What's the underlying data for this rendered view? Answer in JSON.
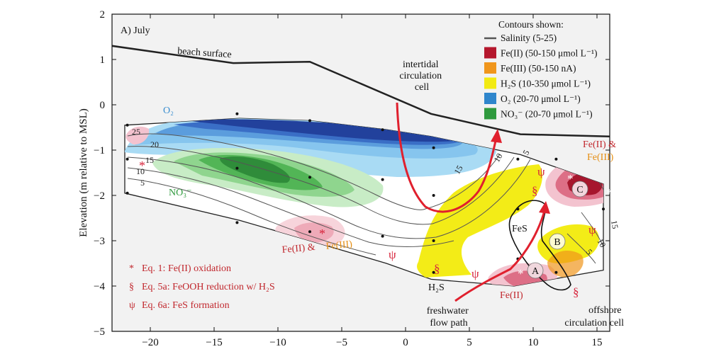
{
  "chart_data": {
    "type": "contour",
    "panel_label": "A) July",
    "ylabel": "Elevation (m relative to MSL)",
    "xlabel": "",
    "xlim": [
      -23,
      16
    ],
    "ylim": [
      -5,
      2
    ],
    "xticks": [
      -20,
      -15,
      -10,
      -5,
      0,
      5,
      10,
      15
    ],
    "xtick_labels": [
      "−20",
      "−15",
      "−10",
      "−5",
      "0",
      "5",
      "10",
      "15"
    ],
    "yticks": [
      -5,
      -4,
      -3,
      -2,
      -1,
      0,
      1,
      2
    ],
    "ytick_labels": [
      "−5",
      "−4",
      "−3",
      "−2",
      "−1",
      "0",
      "1",
      "2"
    ],
    "legend": {
      "title": "Contours shown:",
      "position": "top-right",
      "items": [
        {
          "label": "Salinity (5-25)",
          "kind": "line",
          "color": "#555555"
        },
        {
          "label": "Fe(II) (50-150 μmol L⁻¹)",
          "kind": "patch",
          "color": "#b5172d"
        },
        {
          "label": "Fe(III) (50-150 nA)",
          "kind": "patch",
          "color": "#f0961c"
        },
        {
          "label": "H₂S (10-350 μmol L⁻¹)",
          "kind": "patch",
          "color": "#f2ea12"
        },
        {
          "label": "O₂ (20-70 μmol L⁻¹)",
          "kind": "patch",
          "color": "#2f86cc"
        },
        {
          "label": "NO₃⁻ (20-70 μmol L⁻¹)",
          "kind": "patch",
          "color": "#2f9a3e"
        }
      ]
    },
    "beach_surface": {
      "x": [
        -23,
        -13.5,
        -7.5,
        2,
        9,
        16
      ],
      "y": [
        1.3,
        0.92,
        0.95,
        -0.2,
        -0.65,
        -0.7
      ]
    },
    "domain_top": {
      "x": [
        -22,
        -13,
        -7.5,
        -1.5,
        2,
        9,
        15.5
      ],
      "y": [
        -0.45,
        -0.3,
        -0.35,
        -0.55,
        -0.7,
        -1.1,
        -1.75
      ]
    },
    "domain_bottom": {
      "x": [
        -22,
        -13,
        -7.5,
        -1.5,
        2,
        8.5,
        15.5
      ],
      "y": [
        -1.95,
        -2.55,
        -3.0,
        -3.5,
        -3.85,
        -4.0,
        -3.65
      ]
    },
    "sample_points": [
      [
        -21.8,
        -0.45
      ],
      [
        -21.8,
        -1.2
      ],
      [
        -21.8,
        -1.95
      ],
      [
        -13.2,
        -0.2
      ],
      [
        -13.2,
        -1.4
      ],
      [
        -13.2,
        -2.6
      ],
      [
        -7.5,
        -0.35
      ],
      [
        -7.5,
        -1.6
      ],
      [
        -7.5,
        -2.8
      ],
      [
        -1.8,
        -0.55
      ],
      [
        -1.8,
        -1.65
      ],
      [
        -1.8,
        -2.9
      ],
      [
        2.2,
        -0.95
      ],
      [
        2.2,
        -2.0
      ],
      [
        2.2,
        -3.0
      ],
      [
        2.2,
        -3.7
      ],
      [
        8.8,
        -1.2
      ],
      [
        8.8,
        -2.3
      ],
      [
        8.8,
        -3.4
      ],
      [
        11.8,
        -1.2
      ],
      [
        11.8,
        -3.7
      ],
      [
        15.5,
        -2.3
      ]
    ],
    "salinity_contour_labels": [
      "25",
      "20",
      "15",
      "10",
      "5",
      "15",
      "10",
      "5",
      "15",
      "10",
      "5"
    ],
    "species_labels": {
      "o2": "O₂",
      "no3": "NO₃⁻",
      "fes": "FeS",
      "h2s": "H₂S",
      "fe2_left": "Fe(II) &",
      "fe3_left": "Fe(III)",
      "fe2_right": "Fe(II) &",
      "fe3_right": "Fe(III)",
      "fe2_bottom": "Fe(II)"
    },
    "zone_markers": [
      "A",
      "B",
      "C"
    ],
    "annotations": {
      "beach_surface": "beach surface",
      "intertidal": [
        "intertidal",
        "circulation",
        "cell"
      ],
      "freshwater": [
        "freshwater",
        "flow path"
      ],
      "offshore": [
        "offshore",
        "circulation cell"
      ]
    },
    "reaction_key": [
      {
        "symbol": "*",
        "label": "Eq. 1: Fe(II) oxidation"
      },
      {
        "symbol": "§",
        "label": "Eq. 5a: FeOOH reduction w/ H₂S"
      },
      {
        "symbol": "ψ",
        "label": "Eq. 6a: FeS formation"
      }
    ],
    "grid": false
  }
}
